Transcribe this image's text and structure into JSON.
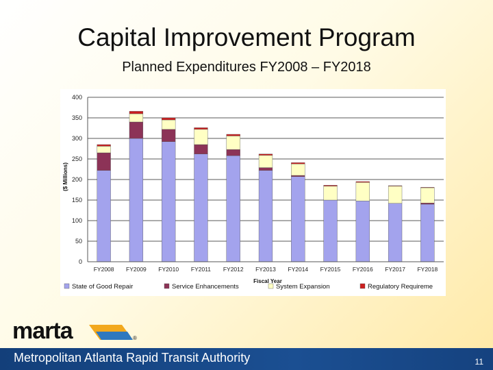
{
  "slide": {
    "title": "Capital Improvement Program",
    "subtitle": "Planned Expenditures FY2008 – FY2018",
    "page_number": "11"
  },
  "branding": {
    "logo_text": "marta",
    "registered_mark": "®",
    "authority_name": "Metropolitan Atlanta Rapid Transit Authority"
  },
  "colors": {
    "state_of_good_repair": "#a3a3ed",
    "service_enhancements": "#8c3357",
    "system_expansion": "#ffffc4",
    "regulatory_requirements": "#cc1f1f",
    "footer_bg": "#1b4f92",
    "logo_stripe_orange": "#f2a81d",
    "logo_stripe_blue": "#2e78bf"
  },
  "chart_data": {
    "type": "bar",
    "stacked": true,
    "title": "",
    "xlabel": "Fiscal Year",
    "ylabel": "($ Millions)",
    "ylim": [
      0,
      400
    ],
    "yticks": [
      0,
      50,
      100,
      150,
      200,
      250,
      300,
      350,
      400
    ],
    "grid": true,
    "legend_position": "bottom",
    "categories": [
      "FY2008",
      "FY2009",
      "FY2010",
      "FY2011",
      "FY2012",
      "FY2013",
      "FY2014",
      "FY2015",
      "FY2016",
      "FY2017",
      "FY2018"
    ],
    "series": [
      {
        "name": "State of Good Repair",
        "color_key": "state_of_good_repair",
        "values": [
          222,
          300,
          292,
          262,
          258,
          222,
          207,
          150,
          148,
          142,
          140
        ]
      },
      {
        "name": "Service Enhancements",
        "color_key": "service_enhancements",
        "values": [
          43,
          40,
          30,
          23,
          15,
          7,
          3,
          0,
          0,
          0,
          3
        ]
      },
      {
        "name": "System Expansion",
        "color_key": "system_expansion",
        "values": [
          16,
          20,
          23,
          37,
          33,
          30,
          28,
          34,
          45,
          42,
          37
        ]
      },
      {
        "name": "Regulatory Requirements",
        "color_key": "regulatory_requirements",
        "values": [
          4,
          6,
          5,
          4,
          4,
          3,
          3,
          2,
          2,
          1,
          1
        ]
      }
    ],
    "legend_labels": [
      "State of Good Repair",
      "Service Enhancements",
      "System Expansion",
      "Regulatory Requireme"
    ]
  }
}
